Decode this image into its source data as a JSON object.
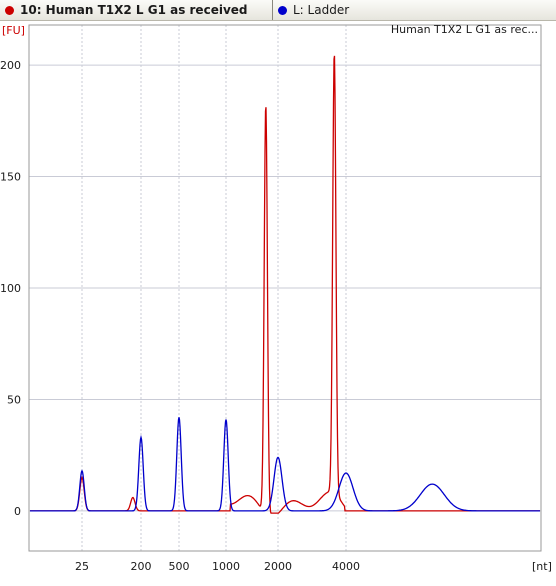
{
  "header": {
    "sample_tab": {
      "label": "10: Human T1X2 L G1 as received",
      "color": "#cc0000"
    },
    "ladder_tab": {
      "label": "L: Ladder",
      "color": "#0000cc"
    }
  },
  "chart_data": {
    "type": "line",
    "title": "Human T1X2 L G1 as rec...",
    "ylabel": "[FU]",
    "xlabel": "[nt]",
    "yticks": [
      0,
      50,
      100,
      150,
      200
    ],
    "ylim": [
      -18,
      218
    ],
    "xticks": [
      25,
      200,
      500,
      1000,
      2000,
      4000
    ],
    "grid": true,
    "series": [
      {
        "name": "Human T1X2 L G1 as received",
        "color": "#cc0000",
        "peaks": [
          {
            "x": 25,
            "height": 15
          },
          {
            "x": 150,
            "height": 6
          },
          {
            "x": 1700,
            "height": 184
          },
          {
            "x": 3550,
            "height": 198
          }
        ]
      },
      {
        "name": "Ladder",
        "color": "#0000cc",
        "peaks": [
          {
            "x": 25,
            "height": 18
          },
          {
            "x": 200,
            "height": 33
          },
          {
            "x": 500,
            "height": 42
          },
          {
            "x": 1000,
            "height": 41
          },
          {
            "x": 2000,
            "height": 24
          },
          {
            "x": 4000,
            "height": 17
          },
          {
            "x": 6000,
            "height": 12
          }
        ]
      }
    ]
  }
}
